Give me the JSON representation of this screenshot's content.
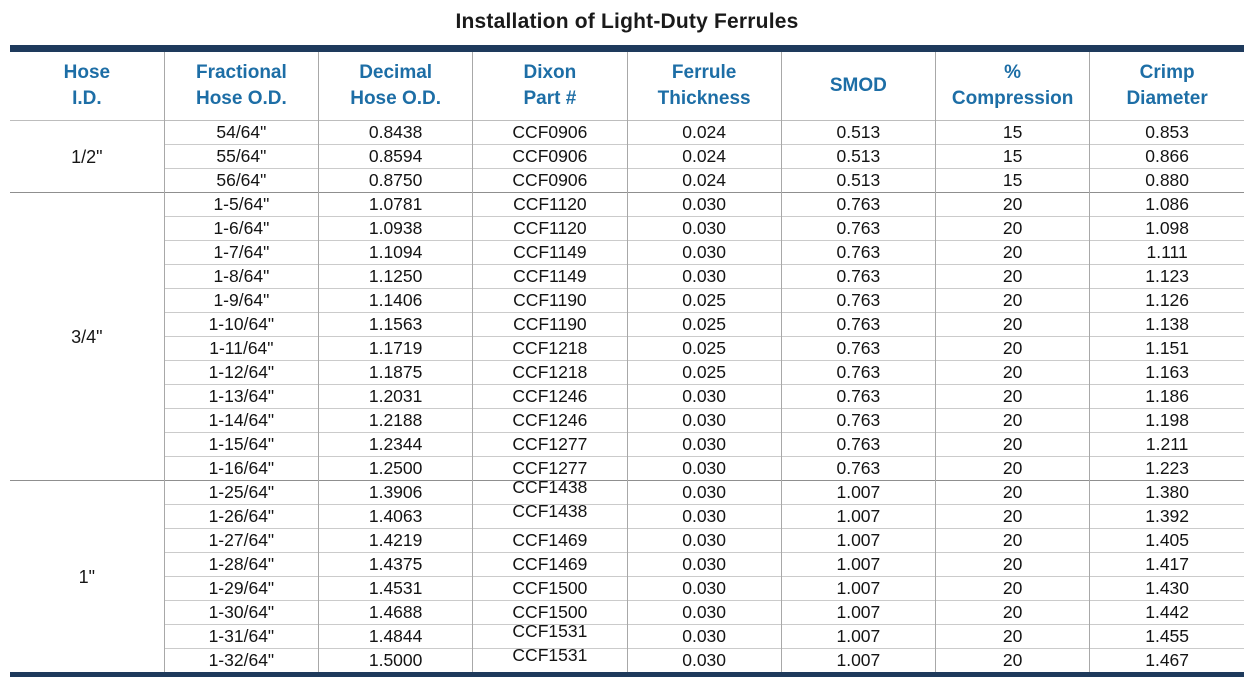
{
  "title": "Installation of Light-Duty Ferrules",
  "colors": {
    "accent_navy": "#1e3a5c",
    "header_blue": "#1d6ea6",
    "row_line": "#cbcbcb",
    "group_line": "#8f8f8f",
    "column_line": "#a8a8a8"
  },
  "table": {
    "columns": [
      {
        "key": "hose-id",
        "label": "Hose\nI.D."
      },
      {
        "key": "fractional-hose-od",
        "label": "Fractional\nHose O.D."
      },
      {
        "key": "decimal-hose-od",
        "label": "Decimal\nHose O.D."
      },
      {
        "key": "dixon-part",
        "label": "Dixon\nPart #"
      },
      {
        "key": "ferrule-thickness",
        "label": "Ferrule\nThickness"
      },
      {
        "key": "smod",
        "label": "SMOD"
      },
      {
        "key": "percent-compression",
        "label": "%\nCompression"
      },
      {
        "key": "crimp-diameter",
        "label": "Crimp\nDiameter"
      }
    ],
    "groups": [
      {
        "hose_id": "1/2\"",
        "rows": [
          {
            "fractional": "54/64\"",
            "decimal": "0.8438",
            "part": "CCF0906",
            "thickness": "0.024",
            "smod": "0.513",
            "compression": "15",
            "crimp": "0.853",
            "part_raised": false
          },
          {
            "fractional": "55/64\"",
            "decimal": "0.8594",
            "part": "CCF0906",
            "thickness": "0.024",
            "smod": "0.513",
            "compression": "15",
            "crimp": "0.866",
            "part_raised": false
          },
          {
            "fractional": "56/64\"",
            "decimal": "0.8750",
            "part": "CCF0906",
            "thickness": "0.024",
            "smod": "0.513",
            "compression": "15",
            "crimp": "0.880",
            "part_raised": false
          }
        ]
      },
      {
        "hose_id": "3/4\"",
        "rows": [
          {
            "fractional": "1-5/64\"",
            "decimal": "1.0781",
            "part": "CCF1120",
            "thickness": "0.030",
            "smod": "0.763",
            "compression": "20",
            "crimp": "1.086",
            "part_raised": false
          },
          {
            "fractional": "1-6/64\"",
            "decimal": "1.0938",
            "part": "CCF1120",
            "thickness": "0.030",
            "smod": "0.763",
            "compression": "20",
            "crimp": "1.098",
            "part_raised": false
          },
          {
            "fractional": "1-7/64\"",
            "decimal": "1.1094",
            "part": "CCF1149",
            "thickness": "0.030",
            "smod": "0.763",
            "compression": "20",
            "crimp": "1.111",
            "part_raised": false
          },
          {
            "fractional": "1-8/64\"",
            "decimal": "1.1250",
            "part": "CCF1149",
            "thickness": "0.030",
            "smod": "0.763",
            "compression": "20",
            "crimp": "1.123",
            "part_raised": false
          },
          {
            "fractional": "1-9/64\"",
            "decimal": "1.1406",
            "part": "CCF1190",
            "thickness": "0.025",
            "smod": "0.763",
            "compression": "20",
            "crimp": "1.126",
            "part_raised": false
          },
          {
            "fractional": "1-10/64\"",
            "decimal": "1.1563",
            "part": "CCF1190",
            "thickness": "0.025",
            "smod": "0.763",
            "compression": "20",
            "crimp": "1.138",
            "part_raised": false
          },
          {
            "fractional": "1-11/64\"",
            "decimal": "1.1719",
            "part": "CCF1218",
            "thickness": "0.025",
            "smod": "0.763",
            "compression": "20",
            "crimp": "1.151",
            "part_raised": false
          },
          {
            "fractional": "1-12/64\"",
            "decimal": "1.1875",
            "part": "CCF1218",
            "thickness": "0.025",
            "smod": "0.763",
            "compression": "20",
            "crimp": "1.163",
            "part_raised": false
          },
          {
            "fractional": "1-13/64\"",
            "decimal": "1.2031",
            "part": "CCF1246",
            "thickness": "0.030",
            "smod": "0.763",
            "compression": "20",
            "crimp": "1.186",
            "part_raised": false
          },
          {
            "fractional": "1-14/64\"",
            "decimal": "1.2188",
            "part": "CCF1246",
            "thickness": "0.030",
            "smod": "0.763",
            "compression": "20",
            "crimp": "1.198",
            "part_raised": false
          },
          {
            "fractional": "1-15/64\"",
            "decimal": "1.2344",
            "part": "CCF1277",
            "thickness": "0.030",
            "smod": "0.763",
            "compression": "20",
            "crimp": "1.211",
            "part_raised": false
          },
          {
            "fractional": "1-16/64\"",
            "decimal": "1.2500",
            "part": "CCF1277",
            "thickness": "0.030",
            "smod": "0.763",
            "compression": "20",
            "crimp": "1.223",
            "part_raised": false
          }
        ]
      },
      {
        "hose_id": "1\"",
        "rows": [
          {
            "fractional": "1-25/64\"",
            "decimal": "1.3906",
            "part": "CCF1438",
            "thickness": "0.030",
            "smod": "1.007",
            "compression": "20",
            "crimp": "1.380",
            "part_raised": true
          },
          {
            "fractional": "1-26/64\"",
            "decimal": "1.4063",
            "part": "CCF1438",
            "thickness": "0.030",
            "smod": "1.007",
            "compression": "20",
            "crimp": "1.392",
            "part_raised": true
          },
          {
            "fractional": "1-27/64\"",
            "decimal": "1.4219",
            "part": "CCF1469",
            "thickness": "0.030",
            "smod": "1.007",
            "compression": "20",
            "crimp": "1.405",
            "part_raised": false
          },
          {
            "fractional": "1-28/64\"",
            "decimal": "1.4375",
            "part": "CCF1469",
            "thickness": "0.030",
            "smod": "1.007",
            "compression": "20",
            "crimp": "1.417",
            "part_raised": false
          },
          {
            "fractional": "1-29/64\"",
            "decimal": "1.4531",
            "part": "CCF1500",
            "thickness": "0.030",
            "smod": "1.007",
            "compression": "20",
            "crimp": "1.430",
            "part_raised": false
          },
          {
            "fractional": "1-30/64\"",
            "decimal": "1.4688",
            "part": "CCF1500",
            "thickness": "0.030",
            "smod": "1.007",
            "compression": "20",
            "crimp": "1.442",
            "part_raised": false
          },
          {
            "fractional": "1-31/64\"",
            "decimal": "1.4844",
            "part": "CCF1531",
            "thickness": "0.030",
            "smod": "1.007",
            "compression": "20",
            "crimp": "1.455",
            "part_raised": true
          },
          {
            "fractional": "1-32/64\"",
            "decimal": "1.5000",
            "part": "CCF1531",
            "thickness": "0.030",
            "smod": "1.007",
            "compression": "20",
            "crimp": "1.467",
            "part_raised": true
          }
        ]
      }
    ]
  }
}
